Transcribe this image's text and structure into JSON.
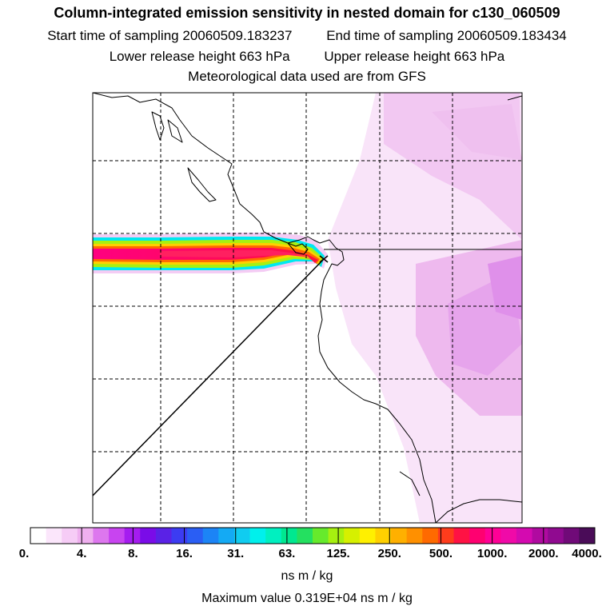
{
  "header": {
    "title": "Column-integrated emission sensitivity in nested domain for c130_060509",
    "start_label": "Start time of sampling",
    "start_value": "20060509.183237",
    "end_label": "End time of sampling",
    "end_value": "20060509.183434",
    "lower_label": "Lower release height",
    "lower_value": "663 hPa",
    "upper_label": "Upper release height",
    "upper_value": "663 hPa",
    "meteo": "Meteorological data used are from GFS"
  },
  "legend": {
    "ticks": [
      "0.",
      "4.",
      "8.",
      "16.",
      "31.",
      "63.",
      "125.",
      "250.",
      "500.",
      "1000.",
      "2000.",
      "4000."
    ],
    "units": "ns m / kg",
    "max_value": "Maximum value  0.319E+04 ns m / kg",
    "colors": [
      "#ffffff",
      "#fbe6fb",
      "#f6ccf6",
      "#efb0ef",
      "#dd77ee",
      "#c844f0",
      "#a51cf0",
      "#7a0ce8",
      "#5a22e6",
      "#3c3cf2",
      "#2a5ef4",
      "#1c84f6",
      "#14aaf4",
      "#10ccf0",
      "#00f0ec",
      "#00f0c0",
      "#00e890",
      "#24e060",
      "#66ea2c",
      "#a6f010",
      "#d6f000",
      "#fff000",
      "#ffd000",
      "#ffb000",
      "#ff9000",
      "#ff6a00",
      "#ff3c1c",
      "#ff1244",
      "#ff0070",
      "#ff0096",
      "#f00aa8",
      "#d40ab0",
      "#b00aa0",
      "#900a90",
      "#700a78",
      "#4a0c58"
    ]
  }
}
